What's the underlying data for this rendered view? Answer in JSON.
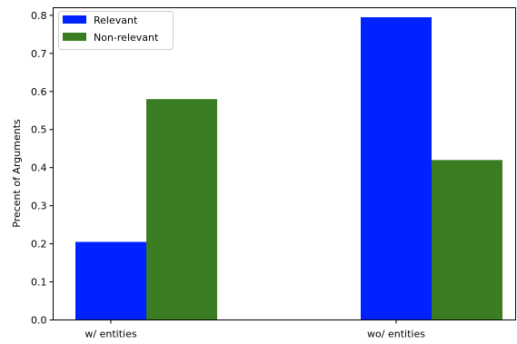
{
  "chart_data": {
    "type": "bar",
    "categories": [
      "w/ entities",
      "wo/ entities"
    ],
    "series": [
      {
        "name": "Relevant",
        "values": [
          0.205,
          0.795
        ],
        "color": "#0022ff"
      },
      {
        "name": "Non-relevant",
        "values": [
          0.58,
          0.42
        ],
        "color": "#3a7d22"
      }
    ],
    "ylabel": "Precent of Arguments",
    "ylim": [
      0,
      0.82
    ],
    "yticks": [
      "0.0",
      "0.1",
      "0.2",
      "0.3",
      "0.4",
      "0.5",
      "0.6",
      "0.7",
      "0.8"
    ],
    "legend": "top-left",
    "grid": false
  }
}
